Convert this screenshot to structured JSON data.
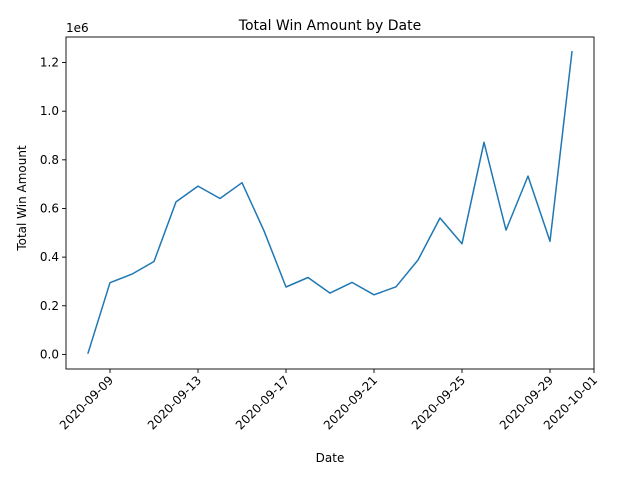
{
  "chart_data": {
    "type": "line",
    "title": "Total Win Amount by Date",
    "xlabel": "Date",
    "ylabel": "Total Win Amount",
    "offset_text": "1e6",
    "color": "#1f77b4",
    "grid": false,
    "legend": "none",
    "x": [
      "2020-09-08",
      "2020-09-09",
      "2020-09-10",
      "2020-09-11",
      "2020-09-12",
      "2020-09-13",
      "2020-09-14",
      "2020-09-15",
      "2020-09-16",
      "2020-09-17",
      "2020-09-18",
      "2020-09-19",
      "2020-09-20",
      "2020-09-21",
      "2020-09-22",
      "2020-09-23",
      "2020-09-24",
      "2020-09-25",
      "2020-09-26",
      "2020-09-27",
      "2020-09-28",
      "2020-09-29",
      "2020-09-30"
    ],
    "y": [
      5000,
      295000,
      330000,
      382000,
      627000,
      692000,
      641000,
      706000,
      508000,
      277000,
      316000,
      252000,
      296000,
      245000,
      278000,
      388000,
      561000,
      455000,
      872000,
      511000,
      733000,
      465000,
      1245000
    ],
    "xlim": [
      "2020-09-07",
      "2020-10-01"
    ],
    "ylim": [
      -60000,
      1305000
    ],
    "x_ticks": [
      "2020-09-09",
      "2020-09-13",
      "2020-09-17",
      "2020-09-21",
      "2020-09-25",
      "2020-09-29",
      "2020-10-01"
    ],
    "y_ticks": [
      0,
      200000,
      400000,
      600000,
      800000,
      1000000,
      1200000
    ],
    "y_tick_labels": [
      "0.0",
      "0.2",
      "0.4",
      "0.6",
      "0.8",
      "1.0",
      "1.2"
    ]
  }
}
